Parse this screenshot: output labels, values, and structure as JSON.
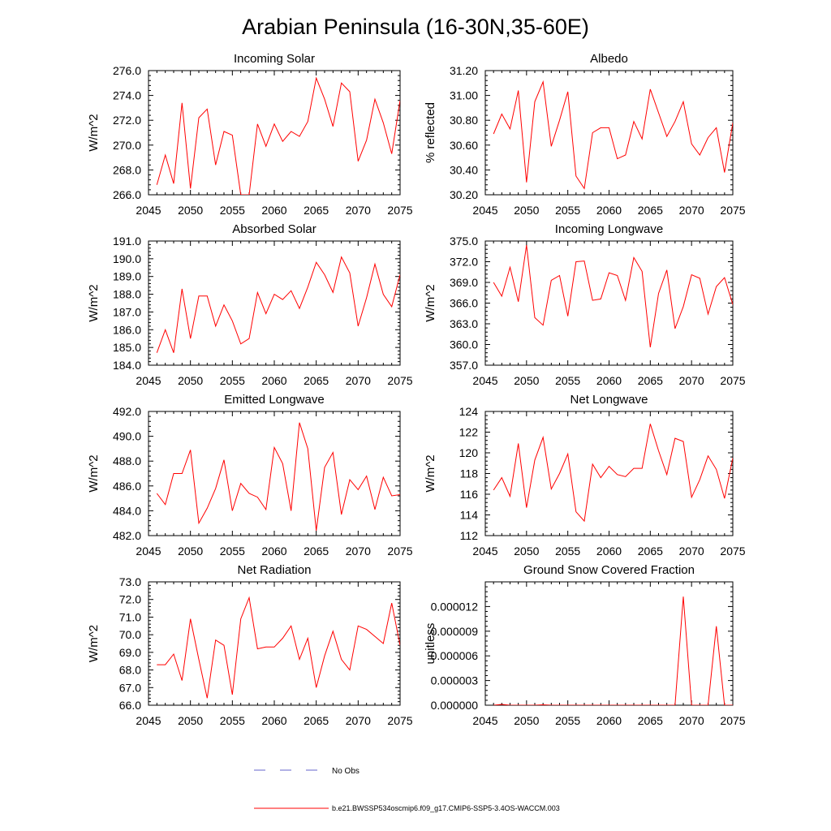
{
  "figure": {
    "title": "Arabian Peninsula (16-30N,35-60E)",
    "legend": [
      {
        "label": "No Obs",
        "style": "dashed",
        "color": "#6666cc"
      },
      {
        "label": "b.e21.BWSSP534oscmip6.f09_g17.CMIP6-SSP5-3.4OS-WACCM.003",
        "style": "solid",
        "color": "#ff0000"
      }
    ],
    "line_color": "#ff0000"
  },
  "chart_data": [
    {
      "type": "line",
      "title": "Incoming Solar",
      "ylabel": "W/m^2",
      "xlim": [
        2045,
        2075
      ],
      "ylim": [
        266,
        276
      ],
      "yticks": [
        "266.0",
        "268.0",
        "270.0",
        "272.0",
        "274.0",
        "276.0"
      ],
      "xticks": [
        "2045",
        "2050",
        "2055",
        "2060",
        "2065",
        "2070",
        "2075"
      ],
      "x": [
        2046,
        2047,
        2048,
        2049,
        2050,
        2051,
        2052,
        2053,
        2054,
        2055,
        2056,
        2057,
        2058,
        2059,
        2060,
        2061,
        2062,
        2063,
        2064,
        2065,
        2066,
        2067,
        2068,
        2069,
        2070,
        2071,
        2072,
        2073,
        2074,
        2075
      ],
      "values": [
        266.8,
        269.2,
        266.9,
        273.4,
        266.5,
        272.2,
        272.9,
        268.4,
        271.1,
        270.8,
        266.0,
        266.0,
        271.7,
        269.9,
        271.7,
        270.3,
        271.1,
        270.7,
        271.9,
        275.4,
        273.7,
        271.5,
        275.0,
        274.3,
        268.7,
        270.4,
        273.7,
        271.8,
        269.3,
        273.6
      ]
    },
    {
      "type": "line",
      "title": "Albedo",
      "ylabel": "% reflected",
      "xlim": [
        2045,
        2075
      ],
      "ylim": [
        30.2,
        31.2
      ],
      "yticks": [
        "30.20",
        "30.40",
        "30.60",
        "30.80",
        "31.00",
        "31.20"
      ],
      "xticks": [
        "2045",
        "2050",
        "2055",
        "2060",
        "2065",
        "2070",
        "2075"
      ],
      "x": [
        2046,
        2047,
        2048,
        2049,
        2050,
        2051,
        2052,
        2053,
        2054,
        2055,
        2056,
        2057,
        2058,
        2059,
        2060,
        2061,
        2062,
        2063,
        2064,
        2065,
        2066,
        2067,
        2068,
        2069,
        2070,
        2071,
        2072,
        2073,
        2074,
        2075
      ],
      "values": [
        30.69,
        30.85,
        30.73,
        31.04,
        30.3,
        30.95,
        31.11,
        30.59,
        30.8,
        31.03,
        30.35,
        30.25,
        30.7,
        30.74,
        30.74,
        30.49,
        30.52,
        30.79,
        30.65,
        31.05,
        30.86,
        30.67,
        30.79,
        30.95,
        30.61,
        30.52,
        30.66,
        30.74,
        30.38,
        30.78
      ]
    },
    {
      "type": "line",
      "title": "Absorbed Solar",
      "ylabel": "W/m^2",
      "xlim": [
        2045,
        2075
      ],
      "ylim": [
        184,
        191
      ],
      "yticks": [
        "184.0",
        "185.0",
        "186.0",
        "187.0",
        "188.0",
        "189.0",
        "190.0",
        "191.0"
      ],
      "xticks": [
        "2045",
        "2050",
        "2055",
        "2060",
        "2065",
        "2070",
        "2075"
      ],
      "x": [
        2046,
        2047,
        2048,
        2049,
        2050,
        2051,
        2052,
        2053,
        2054,
        2055,
        2056,
        2057,
        2058,
        2059,
        2060,
        2061,
        2062,
        2063,
        2064,
        2065,
        2066,
        2067,
        2068,
        2069,
        2070,
        2071,
        2072,
        2073,
        2074,
        2075
      ],
      "values": [
        184.7,
        186.0,
        184.7,
        188.3,
        185.5,
        187.9,
        187.9,
        186.2,
        187.4,
        186.5,
        185.2,
        185.5,
        188.1,
        186.9,
        188.0,
        187.7,
        188.2,
        187.2,
        188.4,
        189.8,
        189.1,
        188.1,
        190.1,
        189.2,
        186.2,
        187.8,
        189.7,
        188.0,
        187.3,
        189.1
      ]
    },
    {
      "type": "line",
      "title": "Incoming Longwave",
      "ylabel": "W/m^2",
      "xlim": [
        2045,
        2075
      ],
      "ylim": [
        357,
        375
      ],
      "yticks": [
        "357.0",
        "360.0",
        "363.0",
        "366.0",
        "369.0",
        "372.0",
        "375.0"
      ],
      "xticks": [
        "2045",
        "2050",
        "2055",
        "2060",
        "2065",
        "2070",
        "2075"
      ],
      "x": [
        2046,
        2047,
        2048,
        2049,
        2050,
        2051,
        2052,
        2053,
        2054,
        2055,
        2056,
        2057,
        2058,
        2059,
        2060,
        2061,
        2062,
        2063,
        2064,
        2065,
        2066,
        2067,
        2068,
        2069,
        2070,
        2071,
        2072,
        2073,
        2074,
        2075
      ],
      "values": [
        369.0,
        367.0,
        371.2,
        366.2,
        374.4,
        363.9,
        362.8,
        369.3,
        370.0,
        364.1,
        372.0,
        372.1,
        366.4,
        366.6,
        370.4,
        370.0,
        366.4,
        372.6,
        370.6,
        359.6,
        367.4,
        370.8,
        362.3,
        365.5,
        370.1,
        369.6,
        364.4,
        368.4,
        369.7,
        365.8
      ]
    },
    {
      "type": "line",
      "title": "Emitted Longwave",
      "ylabel": "W/m^2",
      "xlim": [
        2045,
        2075
      ],
      "ylim": [
        482,
        492
      ],
      "yticks": [
        "482.0",
        "484.0",
        "486.0",
        "488.0",
        "490.0",
        "492.0"
      ],
      "xticks": [
        "2045",
        "2050",
        "2055",
        "2060",
        "2065",
        "2070",
        "2075"
      ],
      "x": [
        2046,
        2047,
        2048,
        2049,
        2050,
        2051,
        2052,
        2053,
        2054,
        2055,
        2056,
        2057,
        2058,
        2059,
        2060,
        2061,
        2062,
        2063,
        2064,
        2065,
        2066,
        2067,
        2068,
        2069,
        2070,
        2071,
        2072,
        2073,
        2074,
        2075
      ],
      "values": [
        485.4,
        484.5,
        487.0,
        487.0,
        488.9,
        483.0,
        484.2,
        485.8,
        488.1,
        484.0,
        486.2,
        485.4,
        485.1,
        484.1,
        489.1,
        487.8,
        484.0,
        491.1,
        489.0,
        482.4,
        487.5,
        488.7,
        483.7,
        486.5,
        485.7,
        486.8,
        484.1,
        486.7,
        485.2,
        485.3
      ]
    },
    {
      "type": "line",
      "title": "Net Longwave",
      "ylabel": "W/m^2",
      "xlim": [
        2045,
        2075
      ],
      "ylim": [
        112,
        124
      ],
      "yticks": [
        "112",
        "114",
        "116",
        "118",
        "120",
        "122",
        "124"
      ],
      "xticks": [
        "2045",
        "2050",
        "2055",
        "2060",
        "2065",
        "2070",
        "2075"
      ],
      "x": [
        2046,
        2047,
        2048,
        2049,
        2050,
        2051,
        2052,
        2053,
        2054,
        2055,
        2056,
        2057,
        2058,
        2059,
        2060,
        2061,
        2062,
        2063,
        2064,
        2065,
        2066,
        2067,
        2068,
        2069,
        2070,
        2071,
        2072,
        2073,
        2074,
        2075
      ],
      "values": [
        116.4,
        117.6,
        115.8,
        120.9,
        114.7,
        119.3,
        121.5,
        116.5,
        118.0,
        119.9,
        114.3,
        113.4,
        118.9,
        117.6,
        118.7,
        117.9,
        117.7,
        118.5,
        118.5,
        122.8,
        120.2,
        117.9,
        121.4,
        121.1,
        115.7,
        117.4,
        119.7,
        118.4,
        115.6,
        119.5
      ]
    },
    {
      "type": "line",
      "title": "Net Radiation",
      "ylabel": "W/m^2",
      "xlim": [
        2045,
        2075
      ],
      "ylim": [
        66,
        73
      ],
      "yticks": [
        "66.0",
        "67.0",
        "68.0",
        "69.0",
        "70.0",
        "71.0",
        "72.0",
        "73.0"
      ],
      "xticks": [
        "2045",
        "2050",
        "2055",
        "2060",
        "2065",
        "2070",
        "2075"
      ],
      "x": [
        2046,
        2047,
        2048,
        2049,
        2050,
        2051,
        2052,
        2053,
        2054,
        2055,
        2056,
        2057,
        2058,
        2059,
        2060,
        2061,
        2062,
        2063,
        2064,
        2065,
        2066,
        2067,
        2068,
        2069,
        2070,
        2071,
        2072,
        2073,
        2074,
        2075
      ],
      "values": [
        68.3,
        68.3,
        68.9,
        67.4,
        70.9,
        68.6,
        66.4,
        69.7,
        69.4,
        66.6,
        70.9,
        72.1,
        69.2,
        69.3,
        69.3,
        69.8,
        70.5,
        68.6,
        69.8,
        67.0,
        68.8,
        70.2,
        68.6,
        68.0,
        70.5,
        70.3,
        69.9,
        69.5,
        71.8,
        69.4
      ]
    },
    {
      "type": "line",
      "title": "Ground Snow Covered Fraction",
      "ylabel": "unitless",
      "xlim": [
        2045,
        2075
      ],
      "ylim": [
        0,
        1.5e-05
      ],
      "yticks": [
        "0.000000",
        "0.000003",
        "0.000006",
        "0.000009",
        "0.000012"
      ],
      "ytick_values": [
        0,
        3e-06,
        6e-06,
        9e-06,
        1.2e-05
      ],
      "xticks": [
        "2045",
        "2050",
        "2055",
        "2060",
        "2065",
        "2070",
        "2075"
      ],
      "x": [
        2046,
        2047,
        2048,
        2049,
        2050,
        2051,
        2052,
        2053,
        2054,
        2055,
        2056,
        2057,
        2058,
        2059,
        2060,
        2061,
        2062,
        2063,
        2064,
        2065,
        2066,
        2067,
        2068,
        2069,
        2070,
        2071,
        2072,
        2073,
        2074,
        2075
      ],
      "values": [
        0,
        1e-07,
        0,
        0,
        0,
        0,
        5e-08,
        0,
        0,
        0,
        0,
        0,
        0,
        0,
        0,
        0,
        0,
        0,
        0,
        0,
        0,
        0,
        0,
        1.32e-05,
        0,
        0,
        0,
        9.6e-06,
        0,
        0
      ]
    }
  ]
}
